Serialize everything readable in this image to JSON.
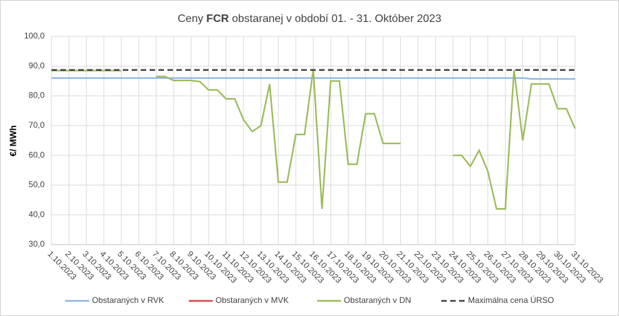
{
  "chart_data": {
    "type": "line",
    "title": [
      "Ceny ",
      "FCR",
      " obstaranej v období 01. - 31. Október 2023"
    ],
    "y_label": "€/ MWh",
    "categories": [
      "1.10.2023",
      null,
      "2.10.2023",
      null,
      "3.10.2023",
      null,
      "4.10.2023",
      null,
      "5.10.2023",
      null,
      "6.10.2023",
      null,
      "7.10.2023",
      null,
      "8.10.2023",
      null,
      "9.10.2023",
      null,
      "10.10.2023",
      null,
      "11.10.2023",
      null,
      "12.10.2023",
      null,
      "13.10.2023",
      null,
      "14.10.2023",
      null,
      "15.10.2023",
      null,
      "16.10.2023",
      null,
      "17.10.2023",
      null,
      "18.10.2023",
      null,
      "19.10.2023",
      null,
      "20.10.2023",
      null,
      "21.10.2023",
      null,
      "22.10.2023",
      null,
      "23.10.2023",
      null,
      "24.10.2023",
      null,
      "25.10.2023",
      null,
      "26.10.2023",
      null,
      "27.10.2023",
      null,
      "28.10.2023",
      null,
      "29.10.2023",
      null,
      "30.10.2023",
      null,
      "31.10.2023"
    ],
    "series": [
      {
        "name": "Obstaraných v RVK",
        "color": "#8eb4e3",
        "dashed": false,
        "values": [
          86,
          86,
          86,
          86,
          86,
          86,
          86,
          86,
          86,
          86,
          86,
          86,
          86,
          86,
          86,
          86,
          86,
          86,
          86,
          86,
          86,
          86,
          86,
          86,
          86,
          86,
          86,
          86,
          86,
          86,
          86,
          86,
          86,
          86,
          86,
          86,
          86,
          86,
          86,
          86,
          86,
          86,
          86,
          86,
          86,
          86,
          86,
          86,
          86,
          86,
          86,
          86,
          86,
          86,
          86,
          85.7,
          85.7,
          85.7,
          85.7,
          85.7,
          85.7
        ]
      },
      {
        "name": "Obstaraných v MVK",
        "color": "#e0464b",
        "dashed": false,
        "values": [
          null,
          null,
          null,
          null,
          null,
          null,
          null,
          null,
          null,
          null,
          null,
          null,
          null,
          null,
          null,
          null,
          null,
          null,
          null,
          null,
          null,
          null,
          null,
          null,
          null,
          null,
          null,
          null,
          null,
          null,
          null,
          null,
          null,
          null,
          null,
          null,
          null,
          null,
          null,
          null,
          null,
          null,
          null,
          null,
          null,
          null,
          null,
          null,
          null,
          null,
          null,
          null,
          null,
          null,
          null,
          null,
          null,
          null,
          null,
          null,
          null
        ]
      },
      {
        "name": "Obstaraných v DN",
        "color": "#9bbb59",
        "dashed": false,
        "values": [
          88.5,
          88.5,
          88.5,
          88.5,
          88.5,
          88.5,
          88.5,
          88.5,
          88.5,
          null,
          null,
          null,
          86.5,
          86.5,
          85.2,
          85.2,
          85.2,
          84.8,
          82,
          82,
          79,
          79,
          72,
          68,
          70,
          84,
          51,
          51,
          67,
          67,
          89,
          42,
          85,
          85,
          57,
          57,
          74,
          74,
          64,
          64,
          64,
          null,
          null,
          null,
          null,
          null,
          60,
          60,
          56.3,
          61.7,
          54.7,
          42,
          42,
          88.7,
          65,
          84,
          84,
          84,
          75.7,
          75.7,
          69
        ]
      },
      {
        "name": "Maximálna cena ÚRSO",
        "color": "#404040",
        "dashed": true,
        "values": [
          88.7,
          88.7,
          88.7,
          88.7,
          88.7,
          88.7,
          88.7,
          88.7,
          88.7,
          88.7,
          88.7,
          88.7,
          88.7,
          88.7,
          88.7,
          88.7,
          88.7,
          88.7,
          88.7,
          88.7,
          88.7,
          88.7,
          88.7,
          88.7,
          88.7,
          88.7,
          88.7,
          88.7,
          88.7,
          88.7,
          88.7,
          88.7,
          88.7,
          88.7,
          88.7,
          88.7,
          88.7,
          88.7,
          88.7,
          88.7,
          88.7,
          88.7,
          88.7,
          88.7,
          88.7,
          88.7,
          88.7,
          88.7,
          88.7,
          88.7,
          88.7,
          88.7,
          88.7,
          88.7,
          88.7,
          88.7,
          88.7,
          88.7,
          88.7,
          88.7,
          88.7
        ]
      }
    ],
    "ylim": [
      30,
      100
    ],
    "yticks": [
      {
        "value": 30,
        "label": "30,0"
      },
      {
        "value": 40,
        "label": "40,0"
      },
      {
        "value": 50,
        "label": "50,0"
      },
      {
        "value": 60,
        "label": "60,0"
      },
      {
        "value": 70,
        "label": "70,0"
      },
      {
        "value": 80,
        "label": "80,0"
      },
      {
        "value": 90,
        "label": "90,0"
      },
      {
        "value": 100,
        "label": "100,0"
      }
    ],
    "grid": true,
    "legend": "bottom"
  }
}
